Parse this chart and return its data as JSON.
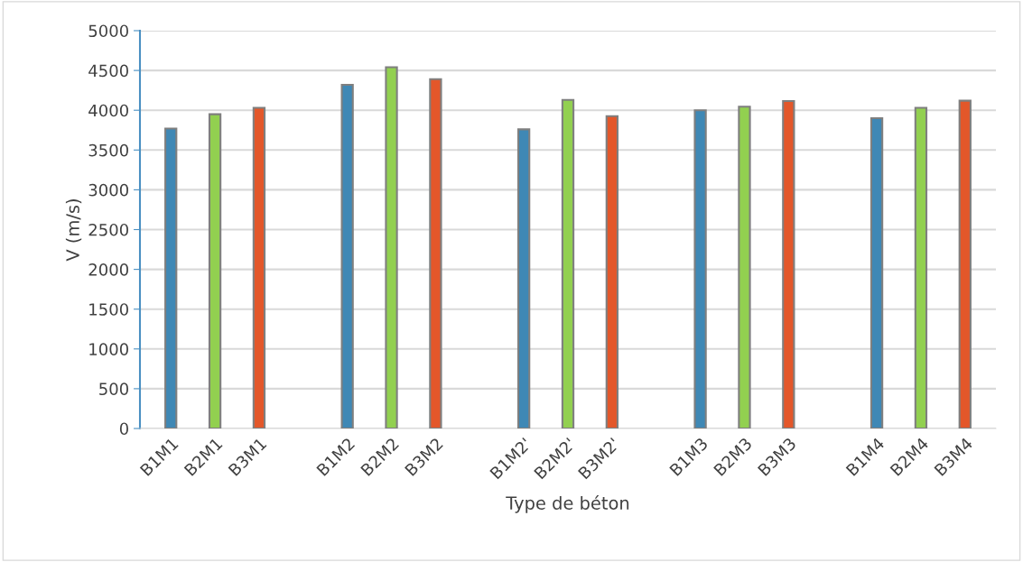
{
  "chart_data": {
    "type": "bar",
    "xlabel": "Type de béton",
    "ylabel": "V (m/s)",
    "categories": [
      "B1M1",
      "B2M1",
      "B3M1",
      null,
      "B1M2",
      "B2M2",
      "B3M2",
      null,
      "B1M2'",
      "B2M2'",
      "B3M2'",
      null,
      "B1M3",
      "B2M3",
      "B3M3",
      null,
      "B1M4",
      "B2M4",
      "B3M4"
    ],
    "values": [
      3770,
      3950,
      4030,
      null,
      4320,
      4540,
      4390,
      null,
      3760,
      4130,
      3925,
      null,
      4000,
      4045,
      4115,
      null,
      3900,
      4030,
      4120
    ],
    "colors": [
      "#3f88b5",
      "#92d050",
      "#e3572a",
      null,
      "#3f88b5",
      "#92d050",
      "#e3572a",
      null,
      "#3f88b5",
      "#92d050",
      "#e3572a",
      null,
      "#3f88b5",
      "#92d050",
      "#e3572a",
      null,
      "#3f88b5",
      "#92d050",
      "#e3572a"
    ],
    "ylim": [
      0,
      5000
    ],
    "yticks": [
      0,
      500,
      1000,
      1500,
      2000,
      2500,
      3000,
      3500,
      4000,
      4500,
      5000
    ],
    "grid": "y"
  }
}
